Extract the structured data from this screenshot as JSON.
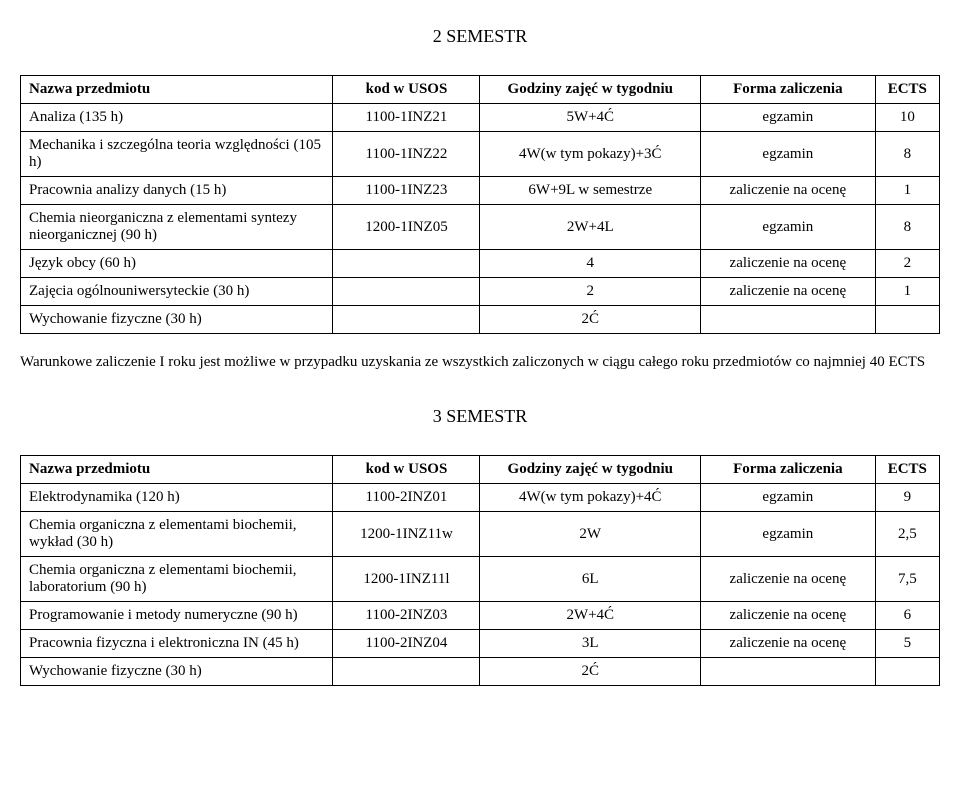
{
  "semester2": {
    "title": "2 SEMESTR",
    "columns": {
      "name": "Nazwa przedmiotu",
      "code": "kod w USOS",
      "hours": "Godziny zajęć w tygodniu",
      "form": "Forma zaliczenia",
      "ects": "ECTS"
    },
    "rows": [
      {
        "name": "Analiza (135 h)",
        "code": "1100-1INZ21",
        "hours": "5W+4Ć",
        "form": "egzamin",
        "ects": "10"
      },
      {
        "name": "Mechanika i szczególna teoria względności (105 h)",
        "code": "1100-1INZ22",
        "hours": "4W(w tym pokazy)+3Ć",
        "form": "egzamin",
        "ects": "8"
      },
      {
        "name": "Pracownia analizy danych (15 h)",
        "code": "1100-1INZ23",
        "hours": "6W+9L w semestrze",
        "form": "zaliczenie na ocenę",
        "ects": "1"
      },
      {
        "name": "Chemia nieorganiczna z elementami syntezy nieorganicznej (90 h)",
        "code": "1200-1INZ05",
        "hours": "2W+4L",
        "form": "egzamin",
        "ects": "8"
      },
      {
        "name": "Język obcy (60 h)",
        "code": "",
        "hours": "4",
        "form": "zaliczenie na ocenę",
        "ects": "2"
      },
      {
        "name": "Zajęcia ogólnouniwersyteckie (30 h)",
        "code": "",
        "hours": "2",
        "form": "zaliczenie na ocenę",
        "ects": "1"
      },
      {
        "name": "Wychowanie fizyczne (30 h)",
        "code": "",
        "hours": "2Ć",
        "form": "",
        "ects": ""
      }
    ]
  },
  "note": "Warunkowe zaliczenie I roku jest możliwe w przypadku uzyskania ze wszystkich zaliczonych w ciągu całego roku przedmiotów co najmniej 40 ECTS",
  "semester3": {
    "title": "3 SEMESTR",
    "columns": {
      "name": "Nazwa przedmiotu",
      "code": "kod w USOS",
      "hours": "Godziny zajęć w tygodniu",
      "form": "Forma zaliczenia",
      "ects": "ECTS"
    },
    "rows": [
      {
        "name": "Elektrodynamika (120 h)",
        "code": "1100-2INZ01",
        "hours": "4W(w tym pokazy)+4Ć",
        "form": "egzamin",
        "ects": "9"
      },
      {
        "name": "Chemia organiczna z elementami biochemii, wykład (30 h)",
        "code": "1200-1INZ11w",
        "hours": "2W",
        "form": "egzamin",
        "ects": "2,5"
      },
      {
        "name": "Chemia organiczna z elementami biochemii, laboratorium (90 h)",
        "code": "1200-1INZ11l",
        "hours": "6L",
        "form": "zaliczenie na ocenę",
        "ects": "7,5"
      },
      {
        "name": "Programowanie i metody numeryczne (90 h)",
        "code": "1100-2INZ03",
        "hours": "2W+4Ć",
        "form": "zaliczenie na ocenę",
        "ects": "6"
      },
      {
        "name": "Pracownia fizyczna i elektroniczna IN (45 h)",
        "code": "1100-2INZ04",
        "hours": "3L",
        "form": "zaliczenie na ocenę",
        "ects": "5"
      },
      {
        "name": "Wychowanie fizyczne (30 h)",
        "code": "",
        "hours": "2Ć",
        "form": "",
        "ects": ""
      }
    ]
  },
  "colwidths": {
    "name": "34%",
    "code": "16%",
    "hours": "24%",
    "form": "19%",
    "ects": "7%"
  }
}
